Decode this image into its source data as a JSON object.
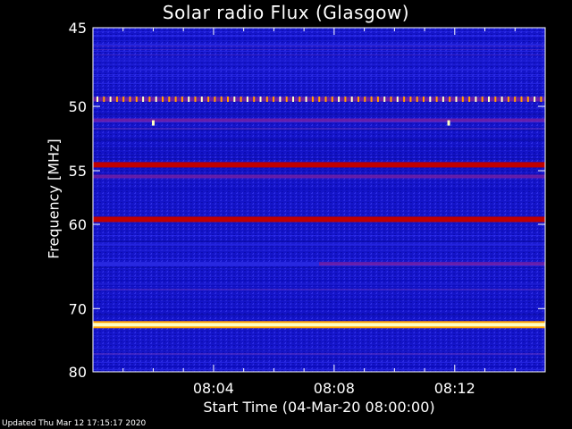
{
  "chart_data": {
    "type": "heatmap",
    "title": "Solar radio Flux (Glasgow)",
    "xlabel": "Start Time (04-Mar-20 08:00:00)",
    "ylabel": "Frequency [MHz]",
    "x_start": "08:00:00",
    "x_end": "08:15:00",
    "x_ticks": [
      "08:04",
      "08:08",
      "08:12"
    ],
    "x_tick_minutes": [
      4,
      8,
      12
    ],
    "x_range_minutes": [
      0,
      15
    ],
    "y_ticks": [
      45,
      50,
      55,
      60,
      70,
      80
    ],
    "y_axis_scale": "reciprocal",
    "y_range_mhz": [
      45,
      80
    ],
    "colormap": [
      "#1010d0",
      "#4040e8",
      "#8020a0",
      "#c00000",
      "#ffa000",
      "#ffffc0"
    ],
    "bands": [
      {
        "mhz": 49.5,
        "intensity": "dotted-spikes"
      },
      {
        "mhz": 51.0,
        "intensity": "medium"
      },
      {
        "mhz": 54.5,
        "intensity": "high"
      },
      {
        "mhz": 55.5,
        "intensity": "medium"
      },
      {
        "mhz": 59.5,
        "intensity": "high"
      },
      {
        "mhz": 64.3,
        "intensity": "medium",
        "from_minute": 7.5
      },
      {
        "mhz": 72.3,
        "intensity": "max"
      }
    ],
    "bursts": [
      {
        "minute": 2.0,
        "mhz": 51.2
      },
      {
        "minute": 11.8,
        "mhz": 51.2
      }
    ]
  },
  "updated": "Updated Thu Mar 12 17:15:17 2020"
}
